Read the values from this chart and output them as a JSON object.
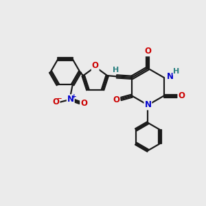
{
  "bg_color": "#ebebeb",
  "bond_color": "#1a1a1a",
  "bond_width": 1.6,
  "atom_colors": {
    "O": "#cc0000",
    "N": "#0000cc",
    "H": "#2a8080",
    "C": "#1a1a1a"
  },
  "font_size": 8.5
}
